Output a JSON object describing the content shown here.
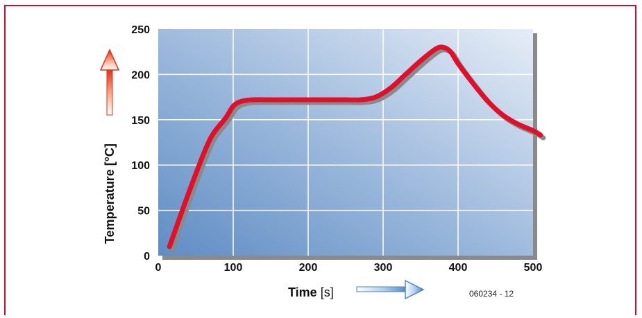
{
  "chart_data": {
    "type": "line",
    "xlabel_main": "Time ",
    "xlabel_unit": "[s]",
    "ylabel": "Temperature [°C]",
    "xlim": [
      0,
      500
    ],
    "ylim": [
      0,
      250
    ],
    "x_ticks": [
      0,
      100,
      200,
      300,
      400,
      500
    ],
    "y_ticks": [
      0,
      50,
      100,
      150,
      200,
      250
    ],
    "grid": true,
    "series": [
      {
        "x": [
          15,
          30,
          50,
          70,
          90,
          100,
          110,
          125,
          150,
          200,
          250,
          270,
          290,
          310,
          330,
          350,
          370,
          380,
          390,
          400,
          420,
          440,
          460,
          480,
          500,
          510
        ],
        "y": [
          10,
          45,
          90,
          130,
          152,
          165,
          170,
          172,
          172,
          172,
          172,
          172,
          175,
          185,
          200,
          215,
          228,
          230,
          225,
          212,
          190,
          170,
          155,
          145,
          138,
          133
        ],
        "color": "#e0102a"
      }
    ],
    "figure_code": "060234 - 12"
  }
}
